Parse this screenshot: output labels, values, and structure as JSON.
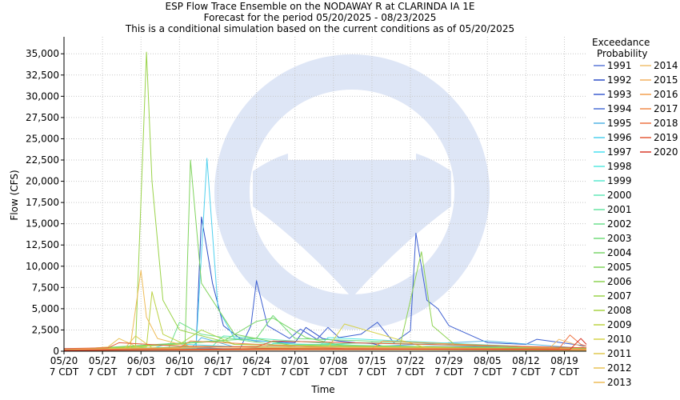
{
  "chart_data": {
    "type": "line",
    "title": [
      "ESP Flow Trace Ensemble on the NODAWAY R at CLARINDA IA 1E",
      "Forecast for the period 05/20/2025 - 08/23/2025",
      "This is a conditional simulation based on the current conditions as of 05/20/2025"
    ],
    "xlabel": "Time",
    "ylabel": "Flow (CFS)",
    "xlim": [
      "2025-05-20",
      "2025-08-23"
    ],
    "ylim": [
      0,
      37000
    ],
    "grid": true,
    "legend_position": "right",
    "x_ticks": [
      {
        "date": "2025-05-20",
        "label": "05/20",
        "sub": "7 CDT"
      },
      {
        "date": "2025-05-27",
        "label": "05/27",
        "sub": "7 CDT"
      },
      {
        "date": "2025-06-03",
        "label": "06/03",
        "sub": "7 CDT"
      },
      {
        "date": "2025-06-10",
        "label": "06/10",
        "sub": "7 CDT"
      },
      {
        "date": "2025-06-17",
        "label": "06/17",
        "sub": "7 CDT"
      },
      {
        "date": "2025-06-24",
        "label": "06/24",
        "sub": "7 CDT"
      },
      {
        "date": "2025-07-01",
        "label": "07/01",
        "sub": "7 CDT"
      },
      {
        "date": "2025-07-08",
        "label": "07/08",
        "sub": "7 CDT"
      },
      {
        "date": "2025-07-15",
        "label": "07/15",
        "sub": "7 CDT"
      },
      {
        "date": "2025-07-22",
        "label": "07/22",
        "sub": "7 CDT"
      },
      {
        "date": "2025-07-29",
        "label": "07/29",
        "sub": "7 CDT"
      },
      {
        "date": "2025-08-05",
        "label": "08/05",
        "sub": "7 CDT"
      },
      {
        "date": "2025-08-12",
        "label": "08/12",
        "sub": "7 CDT"
      },
      {
        "date": "2025-08-19",
        "label": "08/19",
        "sub": "7 CDT"
      }
    ],
    "y_ticks": [
      {
        "value": 0,
        "label": "0"
      },
      {
        "value": 2500,
        "label": "2,500"
      },
      {
        "value": 5000,
        "label": "5,000"
      },
      {
        "value": 7500,
        "label": "7,500"
      },
      {
        "value": 10000,
        "label": "10,000"
      },
      {
        "value": 12500,
        "label": "12,500"
      },
      {
        "value": 15000,
        "label": "15,000"
      },
      {
        "value": 17500,
        "label": "17,500"
      },
      {
        "value": 20000,
        "label": "20,000"
      },
      {
        "value": 22500,
        "label": "22,500"
      },
      {
        "value": 25000,
        "label": "25,000"
      },
      {
        "value": 27500,
        "label": "27,500"
      },
      {
        "value": 30000,
        "label": "30,000"
      },
      {
        "value": 32500,
        "label": "32,500"
      },
      {
        "value": 35000,
        "label": "35,000"
      }
    ],
    "legend_title": [
      "Exceedance",
      "Probability"
    ],
    "series": [
      {
        "name": "1991",
        "color": "#5a78d8",
        "x": [
          "2025-05-20",
          "2025-06-05",
          "2025-06-08",
          "2025-06-15",
          "2025-06-20",
          "2025-07-01",
          "2025-07-10",
          "2025-08-23"
        ],
        "y": [
          150,
          150,
          300,
          400,
          200,
          300,
          150,
          100
        ]
      },
      {
        "name": "1992",
        "color": "#2e4fc7",
        "x": [
          "2025-05-20",
          "2025-06-13",
          "2025-06-14",
          "2025-06-15",
          "2025-06-16",
          "2025-06-18",
          "2025-06-21",
          "2025-06-24",
          "2025-07-01",
          "2025-07-03",
          "2025-07-06",
          "2025-07-09",
          "2025-07-12",
          "2025-07-15",
          "2025-07-17",
          "2025-08-23"
        ],
        "y": [
          200,
          200,
          15800,
          12000,
          8000,
          3000,
          1500,
          1200,
          1000,
          2800,
          1500,
          1200,
          1000,
          900,
          600,
          400
        ]
      },
      {
        "name": "1993",
        "color": "#3d5fd1",
        "x": [
          "2025-05-20",
          "2025-06-21",
          "2025-06-23",
          "2025-06-24",
          "2025-06-26",
          "2025-06-30",
          "2025-07-02",
          "2025-07-05",
          "2025-07-07",
          "2025-07-09",
          "2025-07-13",
          "2025-07-16",
          "2025-07-19",
          "2025-07-22",
          "2025-07-23",
          "2025-07-25",
          "2025-07-27",
          "2025-07-29",
          "2025-08-05",
          "2025-08-12",
          "2025-08-14",
          "2025-08-23"
        ],
        "y": [
          300,
          300,
          3000,
          8300,
          3000,
          1500,
          2600,
          1400,
          2800,
          1600,
          2000,
          3400,
          1000,
          2400,
          13900,
          6000,
          5000,
          3000,
          1000,
          800,
          1400,
          600
        ]
      },
      {
        "name": "1994",
        "color": "#4a6fd6",
        "x": [
          "2025-05-20",
          "2025-06-10",
          "2025-07-05",
          "2025-07-20",
          "2025-08-23"
        ],
        "y": [
          100,
          200,
          200,
          150,
          100
        ]
      },
      {
        "name": "1995",
        "color": "#52b4e4",
        "x": [
          "2025-05-20",
          "2025-06-12",
          "2025-06-14",
          "2025-06-20",
          "2025-07-10",
          "2025-08-05",
          "2025-08-23"
        ],
        "y": [
          150,
          300,
          1600,
          500,
          400,
          1200,
          300
        ]
      },
      {
        "name": "1996",
        "color": "#4fd0ee",
        "x": [
          "2025-05-20",
          "2025-06-10",
          "2025-06-13",
          "2025-06-15",
          "2025-06-17",
          "2025-06-20",
          "2025-07-10",
          "2025-08-23"
        ],
        "y": [
          100,
          300,
          300,
          22700,
          5000,
          1500,
          300,
          200
        ]
      },
      {
        "name": "1997",
        "color": "#48e0f0",
        "x": [
          "2025-05-20",
          "2025-06-05",
          "2025-06-08",
          "2025-07-01",
          "2025-08-23"
        ],
        "y": [
          100,
          300,
          900,
          200,
          100
        ]
      },
      {
        "name": "1998",
        "color": "#57e8e0",
        "x": [
          "2025-05-20",
          "2025-07-05",
          "2025-07-07",
          "2025-08-23"
        ],
        "y": [
          100,
          300,
          1600,
          200
        ]
      },
      {
        "name": "1999",
        "color": "#5be8cf",
        "x": [
          "2025-05-20",
          "2025-06-25",
          "2025-06-27",
          "2025-08-23"
        ],
        "y": [
          100,
          200,
          900,
          150
        ]
      },
      {
        "name": "2000",
        "color": "#62e8b8",
        "x": [
          "2025-05-20",
          "2025-06-16",
          "2025-06-18",
          "2025-07-20",
          "2025-08-23"
        ],
        "y": [
          100,
          600,
          1800,
          300,
          200
        ]
      },
      {
        "name": "2001",
        "color": "#68e4a2",
        "x": [
          "2025-05-20",
          "2025-06-25",
          "2025-07-15",
          "2025-08-23"
        ],
        "y": [
          100,
          600,
          1000,
          200
        ]
      },
      {
        "name": "2002",
        "color": "#6ee08e",
        "x": [
          "2025-05-20",
          "2025-06-08",
          "2025-06-10",
          "2025-06-14",
          "2025-07-01",
          "2025-08-23"
        ],
        "y": [
          100,
          300,
          3400,
          2000,
          400,
          200
        ]
      },
      {
        "name": "2003",
        "color": "#73dc7a",
        "x": [
          "2025-05-20",
          "2025-06-24",
          "2025-06-27",
          "2025-07-01",
          "2025-08-23"
        ],
        "y": [
          150,
          1500,
          4200,
          1500,
          300
        ]
      },
      {
        "name": "2004",
        "color": "#7ad66a",
        "x": [
          "2025-05-20",
          "2025-06-18",
          "2025-06-24",
          "2025-06-27",
          "2025-07-03",
          "2025-07-10",
          "2025-08-23"
        ],
        "y": [
          100,
          1200,
          3500,
          3900,
          1600,
          600,
          200
        ]
      },
      {
        "name": "2005",
        "color": "#80d45e",
        "x": [
          "2025-05-20",
          "2025-06-11",
          "2025-06-12",
          "2025-06-14",
          "2025-06-20",
          "2025-07-01",
          "2025-08-23"
        ],
        "y": [
          100,
          500,
          22500,
          8000,
          2000,
          600,
          200
        ]
      },
      {
        "name": "2006",
        "color": "#8ed352",
        "x": [
          "2025-05-20",
          "2025-07-20",
          "2025-07-24",
          "2025-07-26",
          "2025-07-30",
          "2025-08-23"
        ],
        "y": [
          100,
          300,
          11700,
          3000,
          800,
          300
        ]
      },
      {
        "name": "2007",
        "color": "#9ad34a",
        "x": [
          "2025-05-20",
          "2025-06-02",
          "2025-06-04",
          "2025-06-05",
          "2025-06-07",
          "2025-06-10",
          "2025-06-20",
          "2025-08-23"
        ],
        "y": [
          200,
          500,
          35200,
          20000,
          6000,
          2500,
          800,
          300
        ]
      },
      {
        "name": "2008",
        "color": "#a8d344",
        "x": [
          "2025-05-20",
          "2025-06-10",
          "2025-06-14",
          "2025-06-20",
          "2025-08-23"
        ],
        "y": [
          100,
          800,
          2500,
          800,
          200
        ]
      },
      {
        "name": "2009",
        "color": "#bcd244",
        "x": [
          "2025-05-20",
          "2025-06-04",
          "2025-06-05",
          "2025-06-07",
          "2025-06-12",
          "2025-08-23"
        ],
        "y": [
          100,
          500,
          7000,
          2000,
          500,
          200
        ]
      },
      {
        "name": "2010",
        "color": "#d6d24a",
        "x": [
          "2025-05-20",
          "2025-07-07",
          "2025-07-10",
          "2025-07-25",
          "2025-08-23"
        ],
        "y": [
          100,
          400,
          3200,
          400,
          200
        ]
      },
      {
        "name": "2011",
        "color": "#e0c850",
        "x": [
          "2025-05-20",
          "2025-05-31",
          "2025-06-02",
          "2025-06-05",
          "2025-06-15",
          "2025-08-23"
        ],
        "y": [
          100,
          300,
          1800,
          400,
          200,
          100
        ]
      },
      {
        "name": "2012",
        "color": "#e8c254",
        "x": [
          "2025-05-20",
          "2025-05-28",
          "2025-05-30",
          "2025-06-03",
          "2025-08-23"
        ],
        "y": [
          100,
          500,
          1500,
          300,
          100
        ]
      },
      {
        "name": "2013",
        "color": "#eebc58",
        "x": [
          "2025-05-20",
          "2025-06-01",
          "2025-06-03",
          "2025-06-04",
          "2025-06-06",
          "2025-06-12",
          "2025-08-23"
        ],
        "y": [
          200,
          300,
          9500,
          4000,
          1500,
          500,
          200
        ]
      },
      {
        "name": "2014",
        "color": "#f0c070",
        "x": [
          "2025-05-20",
          "2025-08-16",
          "2025-08-18",
          "2025-08-23"
        ],
        "y": [
          100,
          200,
          1400,
          400
        ]
      },
      {
        "name": "2015",
        "color": "#f2b060",
        "x": [
          "2025-05-20",
          "2025-06-25",
          "2025-07-20",
          "2025-08-23"
        ],
        "y": [
          150,
          600,
          400,
          200
        ]
      },
      {
        "name": "2016",
        "color": "#f2a050",
        "x": [
          "2025-05-20",
          "2025-07-15",
          "2025-07-17",
          "2025-08-23"
        ],
        "y": [
          100,
          300,
          1200,
          200
        ]
      },
      {
        "name": "2017",
        "color": "#f08a4a",
        "x": [
          "2025-05-20",
          "2025-06-10",
          "2025-06-12",
          "2025-07-10",
          "2025-08-23"
        ],
        "y": [
          100,
          400,
          1200,
          300,
          150
        ]
      },
      {
        "name": "2018",
        "color": "#ee7444",
        "x": [
          "2025-05-20",
          "2025-08-18",
          "2025-08-20",
          "2025-08-22",
          "2025-08-23"
        ],
        "y": [
          100,
          300,
          1900,
          800,
          600
        ]
      },
      {
        "name": "2019",
        "color": "#e45c3a",
        "x": [
          "2025-05-20",
          "2025-05-28",
          "2025-05-30",
          "2025-06-10",
          "2025-06-24",
          "2025-06-27",
          "2025-08-23"
        ],
        "y": [
          300,
          400,
          1000,
          600,
          500,
          1200,
          400
        ]
      },
      {
        "name": "2020",
        "color": "#d83a2a",
        "x": [
          "2025-05-20",
          "2025-06-10",
          "2025-06-25",
          "2025-08-20",
          "2025-08-22",
          "2025-08-23"
        ],
        "y": [
          100,
          200,
          300,
          200,
          1500,
          800
        ]
      }
    ]
  }
}
